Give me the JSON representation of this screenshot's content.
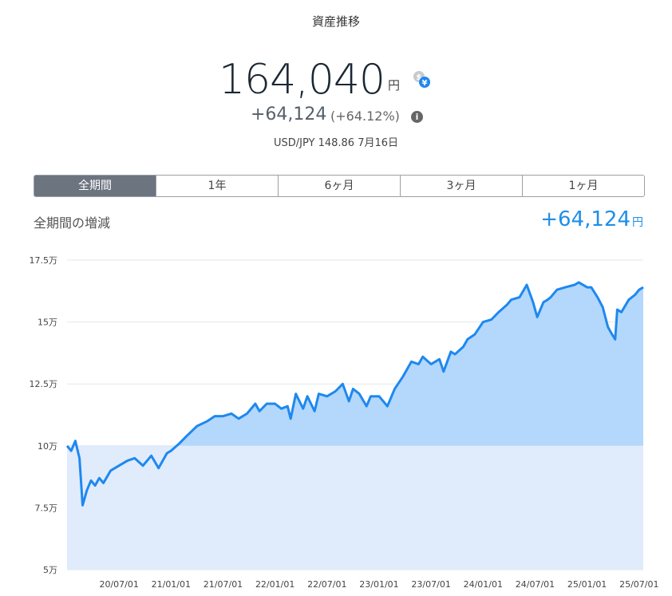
{
  "header": {
    "title": "資産推移",
    "total_value": "164,040",
    "unit": "円",
    "change": "+64,124",
    "change_pct": "(+64.12%)",
    "fx_rate": "USD/JPY 148.86 7月16日",
    "info_glyph": "i",
    "fx_icon": "currency-exchange-icon"
  },
  "tabs": [
    {
      "label": "全期間",
      "active": true
    },
    {
      "label": "1年",
      "active": false
    },
    {
      "label": "6ヶ月",
      "active": false
    },
    {
      "label": "3ヶ月",
      "active": false
    },
    {
      "label": "1ヶ月",
      "active": false
    }
  ],
  "summary": {
    "label": "全期間の増減",
    "value": "+64,124",
    "unit": "円"
  },
  "colors": {
    "accent": "#1e8fe8",
    "line": "#1e88f0",
    "gain_fill": "#b3d8fb",
    "base_fill": "#e0ecfb",
    "active_tab": "#6c7480"
  },
  "chart_data": {
    "type": "area",
    "ylim": [
      5,
      17.5
    ],
    "y_ticks": [
      "5万",
      "7.5万",
      "10万",
      "12.5万",
      "15万",
      "17.5万"
    ],
    "y_tick_values": [
      5,
      7.5,
      10,
      12.5,
      15,
      17.5
    ],
    "baseline": 10,
    "x_ticks": [
      "20/07/01",
      "21/01/01",
      "21/07/01",
      "22/01/01",
      "22/07/01",
      "23/01/01",
      "23/07/01",
      "24/01/01",
      "24/07/01",
      "25/01/01",
      "25/07/01"
    ],
    "x_tick_values": [
      2020.5,
      2021.0,
      2021.5,
      2022.0,
      2022.5,
      2023.0,
      2023.5,
      2024.0,
      2024.5,
      2025.0,
      2025.5
    ],
    "xlim": [
      2020.0,
      2025.54
    ],
    "units": "万円",
    "series": [
      {
        "x": [
          2020.0,
          2020.04,
          2020.08,
          2020.12,
          2020.15,
          2020.19,
          2020.23,
          2020.27,
          2020.31,
          2020.35,
          2020.42,
          2020.5,
          2020.58,
          2020.65,
          2020.73,
          2020.81,
          2020.88,
          2020.96,
          2021.0,
          2021.08,
          2021.15,
          2021.25,
          2021.35,
          2021.42,
          2021.5,
          2021.58,
          2021.65,
          2021.73,
          2021.81,
          2021.85,
          2021.92,
          2022.0,
          2022.06,
          2022.12,
          2022.15,
          2022.2,
          2022.27,
          2022.31,
          2022.38,
          2022.42,
          2022.5,
          2022.58,
          2022.65,
          2022.71,
          2022.75,
          2022.81,
          2022.88,
          2022.92,
          2023.0,
          2023.08,
          2023.15,
          2023.23,
          2023.31,
          2023.38,
          2023.42,
          2023.5,
          2023.58,
          2023.62,
          2023.69,
          2023.73,
          2023.81,
          2023.85,
          2023.92,
          2024.0,
          2024.08,
          2024.15,
          2024.23,
          2024.27,
          2024.35,
          2024.42,
          2024.48,
          2024.52,
          2024.58,
          2024.62,
          2024.65,
          2024.71,
          2024.79,
          2024.88,
          2024.92,
          2025.0,
          2025.04,
          2025.1,
          2025.15,
          2025.2,
          2025.24,
          2025.27,
          2025.29,
          2025.33,
          2025.4,
          2025.46,
          2025.5,
          2025.54
        ],
        "y": [
          10.0,
          9.8,
          10.2,
          9.5,
          7.6,
          8.2,
          8.6,
          8.4,
          8.7,
          8.5,
          9.0,
          9.2,
          9.4,
          9.5,
          9.2,
          9.6,
          9.1,
          9.7,
          9.8,
          10.1,
          10.4,
          10.8,
          11.0,
          11.2,
          11.2,
          11.3,
          11.1,
          11.3,
          11.7,
          11.4,
          11.7,
          11.7,
          11.5,
          11.6,
          11.1,
          12.1,
          11.5,
          12.0,
          11.4,
          12.1,
          12.0,
          12.2,
          12.5,
          11.8,
          12.3,
          12.1,
          11.6,
          12.0,
          12.0,
          11.6,
          12.3,
          12.8,
          13.4,
          13.3,
          13.6,
          13.3,
          13.5,
          13.0,
          13.8,
          13.7,
          14.0,
          14.3,
          14.5,
          15.0,
          15.1,
          15.4,
          15.7,
          15.9,
          16.0,
          16.5,
          15.8,
          15.2,
          15.8,
          15.9,
          16.0,
          16.3,
          16.4,
          16.5,
          16.6,
          16.4,
          16.4,
          16.0,
          15.6,
          14.8,
          14.5,
          14.3,
          15.5,
          15.4,
          15.9,
          16.1,
          16.3,
          16.4
        ]
      }
    ]
  }
}
